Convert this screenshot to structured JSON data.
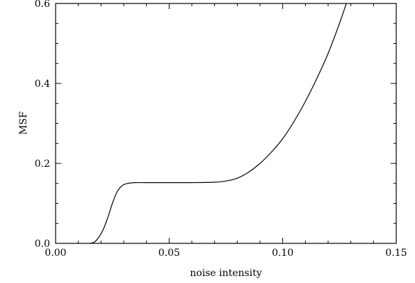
{
  "chart_data": {
    "type": "line",
    "title": "",
    "xlabel": "noise intensity",
    "ylabel": "MSF",
    "xlim": [
      0.0,
      0.15
    ],
    "ylim": [
      0.0,
      0.6
    ],
    "grid": false,
    "x_ticks": [
      {
        "value": 0.0,
        "label": "0.00"
      },
      {
        "value": 0.05,
        "label": "0.05"
      },
      {
        "value": 0.1,
        "label": "0.10"
      },
      {
        "value": 0.15,
        "label": "0.15"
      }
    ],
    "y_ticks": [
      {
        "value": 0.0,
        "label": "0.0"
      },
      {
        "value": 0.2,
        "label": "0.2"
      },
      {
        "value": 0.4,
        "label": "0.4"
      },
      {
        "value": 0.6,
        "label": "0.6"
      }
    ],
    "x_minor_step": 0.01,
    "y_minor_step": 0.05,
    "series": [
      {
        "color": "#000000",
        "x": [
          0.015,
          0.017,
          0.019,
          0.021,
          0.023,
          0.025,
          0.027,
          0.029,
          0.031,
          0.033,
          0.035,
          0.04,
          0.05,
          0.06,
          0.07,
          0.075,
          0.08,
          0.085,
          0.09,
          0.095,
          0.1,
          0.105,
          0.11,
          0.115,
          0.12,
          0.125,
          0.128
        ],
        "y": [
          0.0,
          0.003,
          0.015,
          0.035,
          0.065,
          0.1,
          0.128,
          0.143,
          0.149,
          0.151,
          0.152,
          0.152,
          0.152,
          0.152,
          0.153,
          0.156,
          0.163,
          0.178,
          0.2,
          0.228,
          0.262,
          0.305,
          0.355,
          0.412,
          0.475,
          0.55,
          0.6
        ]
      }
    ]
  }
}
